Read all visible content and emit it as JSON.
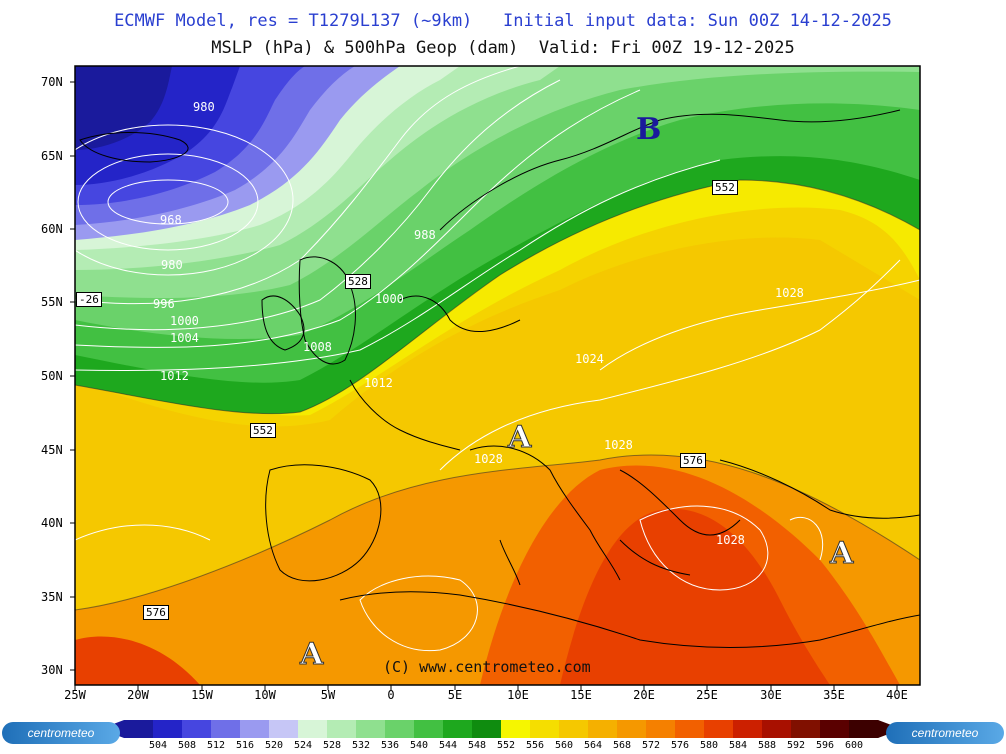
{
  "header": {
    "line1": "ECMWF Model, res = T1279L137 (~9km)   Initial input data: Sun 00Z 14-12-2025",
    "line2": "MSLP (hPa) & 500hPa Geop (dam)  Valid: Fri 00Z 19-12-2025"
  },
  "map": {
    "lat_labels": [
      "70N",
      "65N",
      "60N",
      "55N",
      "50N",
      "45N",
      "40N",
      "35N",
      "30N"
    ],
    "lon_labels": [
      "25W",
      "20W",
      "15W",
      "10W",
      "5W",
      "0",
      "5E",
      "10E",
      "15E",
      "20E",
      "25E",
      "30E",
      "35E",
      "40E"
    ],
    "pressure_systems": [
      {
        "label": "B",
        "type": "low"
      },
      {
        "label": "A",
        "type": "high"
      },
      {
        "label": "A",
        "type": "high"
      },
      {
        "label": "A",
        "type": "high"
      }
    ],
    "geopotential_labels": [
      "552",
      "528",
      "552",
      "576",
      "576",
      "-26"
    ],
    "isobar_labels": [
      "980",
      "968",
      "980",
      "988",
      "996",
      "1000",
      "1004",
      "1012",
      "1000",
      "1008",
      "1012",
      "1024",
      "1028",
      "1028",
      "1028",
      "1028"
    ],
    "copyright": "(C) www.centrometeo.com"
  },
  "colorbar": {
    "values": [
      "504",
      "508",
      "512",
      "516",
      "520",
      "524",
      "528",
      "532",
      "536",
      "540",
      "544",
      "548",
      "552",
      "556",
      "560",
      "564",
      "568",
      "572",
      "576",
      "580",
      "584",
      "588",
      "592",
      "596",
      "600"
    ],
    "colors": [
      "#1a1a9c",
      "#2424c8",
      "#4646e0",
      "#6f6fe8",
      "#9a9af0",
      "#c6c6f6",
      "#d7f5d7",
      "#b4ecb4",
      "#8fe08f",
      "#6ad26a",
      "#42c042",
      "#1ea81e",
      "#0f8c0f",
      "#f6f600",
      "#f5de00",
      "#f5c800",
      "#f5b000",
      "#f59800",
      "#f58000",
      "#f26000",
      "#e84000",
      "#cc2000",
      "#a81000",
      "#801000",
      "#5a0000",
      "#3c0000"
    ],
    "logo_text": "centrometeo"
  }
}
